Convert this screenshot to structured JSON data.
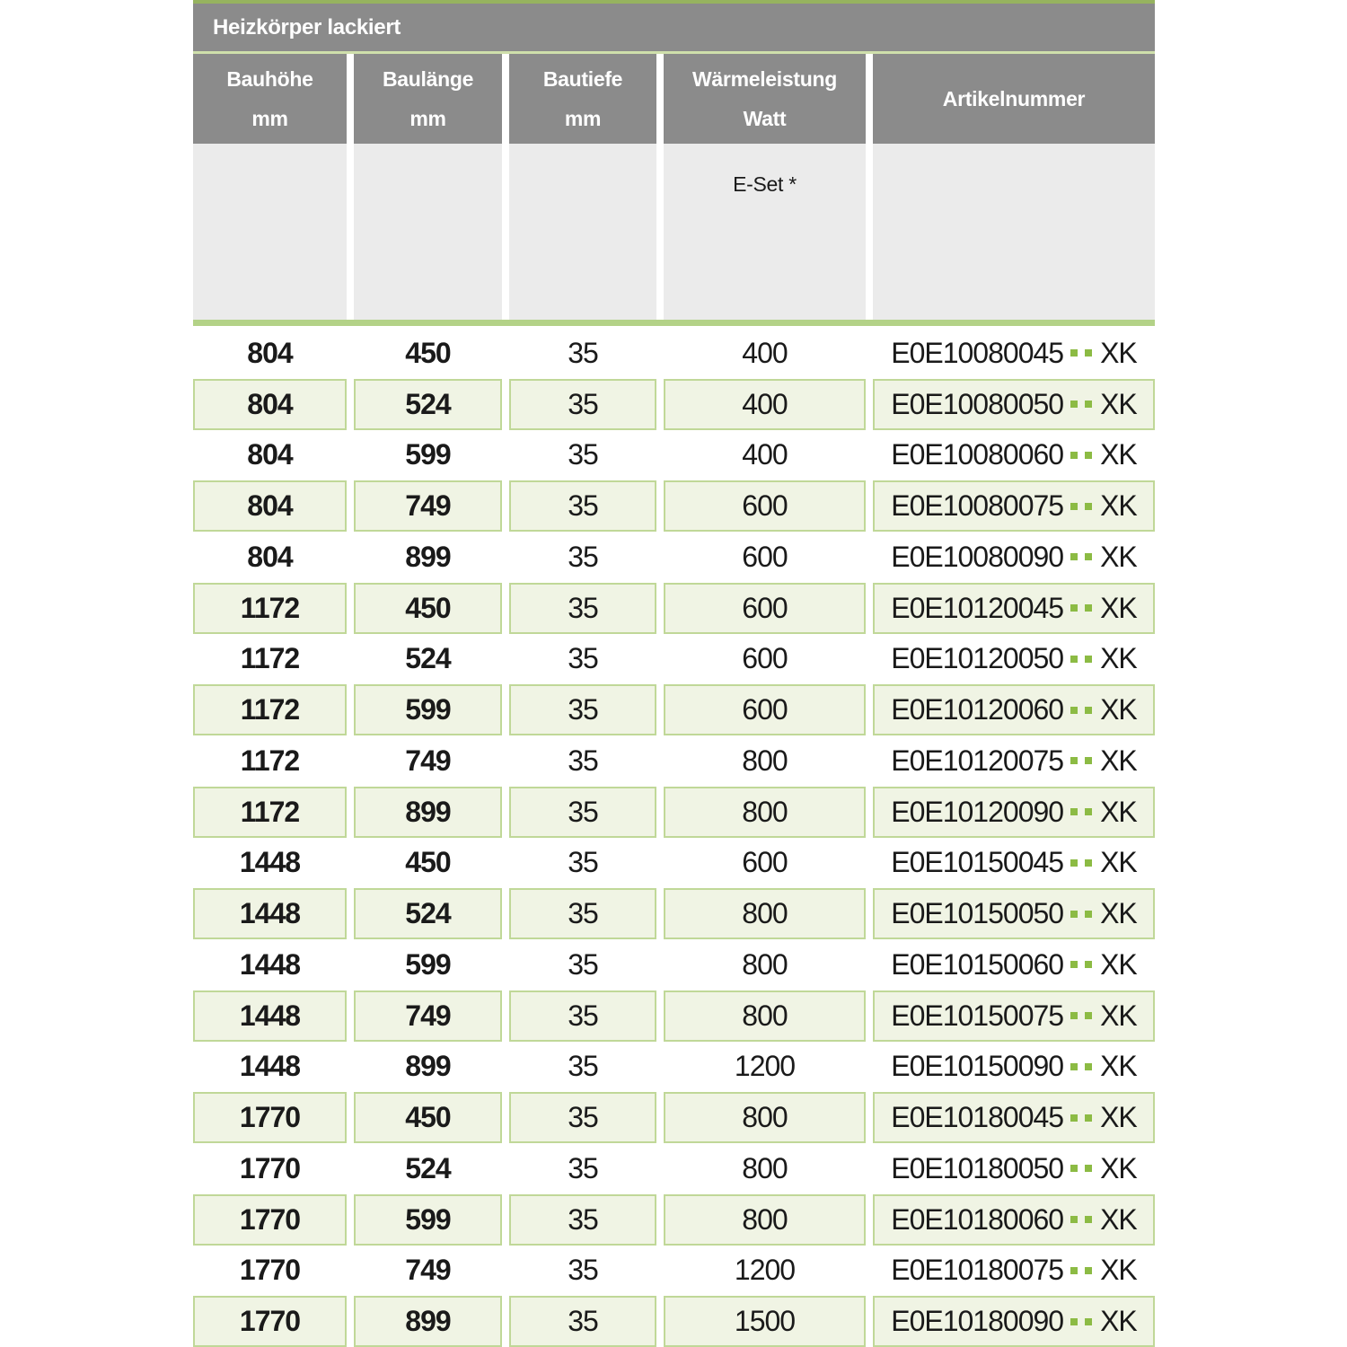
{
  "title": "Heizkörper lackiert",
  "columns": [
    {
      "label": "Bauhöhe",
      "unit": "mm"
    },
    {
      "label": "Baulänge",
      "unit": "mm"
    },
    {
      "label": "Bautiefe",
      "unit": "mm"
    },
    {
      "label": "Wärmeleistung",
      "unit": "Watt"
    },
    {
      "label": "Artikelnummer",
      "unit": ""
    }
  ],
  "subheader": {
    "eset_label": "E-Set *"
  },
  "artikel_dots": "..",
  "rows": [
    {
      "bauhoehe": "804",
      "baulaenge": "450",
      "bautiefe": "35",
      "watt": "400",
      "artikel_prefix": "E0E10080045",
      "artikel_suffix": "XK"
    },
    {
      "bauhoehe": "804",
      "baulaenge": "524",
      "bautiefe": "35",
      "watt": "400",
      "artikel_prefix": "E0E10080050",
      "artikel_suffix": "XK"
    },
    {
      "bauhoehe": "804",
      "baulaenge": "599",
      "bautiefe": "35",
      "watt": "400",
      "artikel_prefix": "E0E10080060",
      "artikel_suffix": "XK"
    },
    {
      "bauhoehe": "804",
      "baulaenge": "749",
      "bautiefe": "35",
      "watt": "600",
      "artikel_prefix": "E0E10080075",
      "artikel_suffix": "XK"
    },
    {
      "bauhoehe": "804",
      "baulaenge": "899",
      "bautiefe": "35",
      "watt": "600",
      "artikel_prefix": "E0E10080090",
      "artikel_suffix": "XK"
    },
    {
      "bauhoehe": "1172",
      "baulaenge": "450",
      "bautiefe": "35",
      "watt": "600",
      "artikel_prefix": "E0E10120045",
      "artikel_suffix": "XK"
    },
    {
      "bauhoehe": "1172",
      "baulaenge": "524",
      "bautiefe": "35",
      "watt": "600",
      "artikel_prefix": "E0E10120050",
      "artikel_suffix": "XK"
    },
    {
      "bauhoehe": "1172",
      "baulaenge": "599",
      "bautiefe": "35",
      "watt": "600",
      "artikel_prefix": "E0E10120060",
      "artikel_suffix": "XK"
    },
    {
      "bauhoehe": "1172",
      "baulaenge": "749",
      "bautiefe": "35",
      "watt": "800",
      "artikel_prefix": "E0E10120075",
      "artikel_suffix": "XK"
    },
    {
      "bauhoehe": "1172",
      "baulaenge": "899",
      "bautiefe": "35",
      "watt": "800",
      "artikel_prefix": "E0E10120090",
      "artikel_suffix": "XK"
    },
    {
      "bauhoehe": "1448",
      "baulaenge": "450",
      "bautiefe": "35",
      "watt": "600",
      "artikel_prefix": "E0E10150045",
      "artikel_suffix": "XK"
    },
    {
      "bauhoehe": "1448",
      "baulaenge": "524",
      "bautiefe": "35",
      "watt": "800",
      "artikel_prefix": "E0E10150050",
      "artikel_suffix": "XK"
    },
    {
      "bauhoehe": "1448",
      "baulaenge": "599",
      "bautiefe": "35",
      "watt": "800",
      "artikel_prefix": "E0E10150060",
      "artikel_suffix": "XK"
    },
    {
      "bauhoehe": "1448",
      "baulaenge": "749",
      "bautiefe": "35",
      "watt": "800",
      "artikel_prefix": "E0E10150075",
      "artikel_suffix": "XK"
    },
    {
      "bauhoehe": "1448",
      "baulaenge": "899",
      "bautiefe": "35",
      "watt": "1200",
      "artikel_prefix": "E0E10150090",
      "artikel_suffix": "XK"
    },
    {
      "bauhoehe": "1770",
      "baulaenge": "450",
      "bautiefe": "35",
      "watt": "800",
      "artikel_prefix": "E0E10180045",
      "artikel_suffix": "XK"
    },
    {
      "bauhoehe": "1770",
      "baulaenge": "524",
      "bautiefe": "35",
      "watt": "800",
      "artikel_prefix": "E0E10180050",
      "artikel_suffix": "XK"
    },
    {
      "bauhoehe": "1770",
      "baulaenge": "599",
      "bautiefe": "35",
      "watt": "800",
      "artikel_prefix": "E0E10180060",
      "artikel_suffix": "XK"
    },
    {
      "bauhoehe": "1770",
      "baulaenge": "749",
      "bautiefe": "35",
      "watt": "1200",
      "artikel_prefix": "E0E10180075",
      "artikel_suffix": "XK"
    },
    {
      "bauhoehe": "1770",
      "baulaenge": "899",
      "bautiefe": "35",
      "watt": "1500",
      "artikel_prefix": "E0E10180090",
      "artikel_suffix": "XK"
    }
  ],
  "colors": {
    "header_gray": "#8b8b8b",
    "subheader_gray": "#ebebeb",
    "top_line_green": "#96b35f",
    "pale_line_green": "#cfdfab",
    "accent_green": "#b3d287",
    "row_green": "#f0f4e4",
    "row_border_green": "#c0d898",
    "dot_green": "#8cbb44"
  }
}
